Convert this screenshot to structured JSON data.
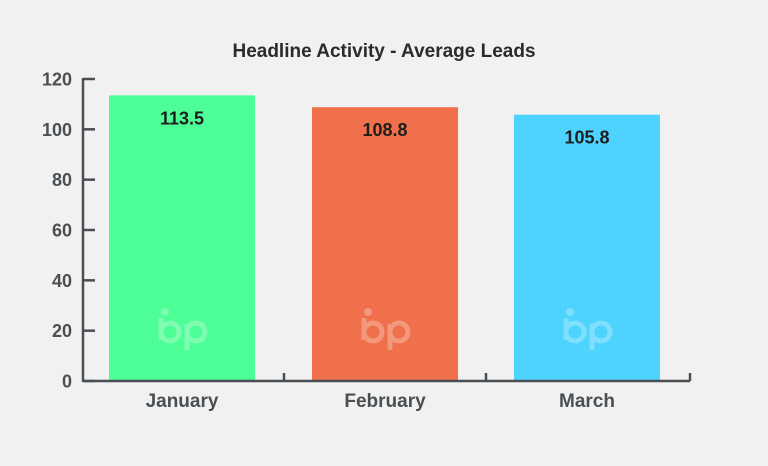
{
  "chart_data": {
    "type": "bar",
    "title": "Headline Activity - Average Leads",
    "xlabel": "",
    "ylabel": "",
    "categories": [
      "January",
      "February",
      "March"
    ],
    "values": [
      113.5,
      108.8,
      105.8
    ],
    "data_labels": [
      "113.5",
      "108.8",
      "105.8"
    ],
    "colors": [
      "#4dfd96",
      "#ef704b",
      "#4dd3fe"
    ],
    "ylim": [
      0,
      120
    ],
    "yticks": [
      0,
      20,
      40,
      60,
      80,
      100,
      120
    ],
    "ytick_labels": [
      "0",
      "20",
      "40",
      "60",
      "80",
      "100",
      "120"
    ],
    "grid": false,
    "legend": "none",
    "axis_color": "#4a4f53",
    "background": "#f1f1f1",
    "watermark_icon": "bp-logo-icon"
  }
}
